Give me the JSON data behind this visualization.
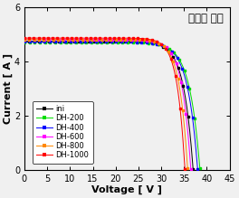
{
  "title": "시제품 모듈",
  "xlabel": "Voltage [ V ]",
  "ylabel": "Current [ A ]",
  "xlim": [
    0,
    45
  ],
  "ylim": [
    0,
    6
  ],
  "xticks": [
    0,
    5,
    10,
    15,
    20,
    25,
    30,
    35,
    40,
    45
  ],
  "yticks": [
    0,
    2,
    4,
    6
  ],
  "bg_color": "#f0f0f0",
  "plot_bg_color": "#f0f0f0",
  "title_fontsize": 8.5,
  "axis_label_fontsize": 8,
  "tick_fontsize": 7,
  "legend_fontsize": 6.0,
  "series": [
    {
      "label": "ini",
      "color": "#000000",
      "isc": 4.75,
      "voc": 37.0,
      "kn": 18.0
    },
    {
      "label": "DH-200",
      "color": "#00dd00",
      "isc": 4.72,
      "voc": 38.5,
      "kn": 17.0
    },
    {
      "label": "DH-400",
      "color": "#0000ff",
      "isc": 4.73,
      "voc": 38.0,
      "kn": 17.5
    },
    {
      "label": "DH-600",
      "color": "#ff00ff",
      "isc": 4.82,
      "voc": 36.5,
      "kn": 19.0
    },
    {
      "label": "DH-800",
      "color": "#ff8800",
      "isc": 4.82,
      "voc": 35.8,
      "kn": 20.0
    },
    {
      "label": "DH-1000",
      "color": "#ff0000",
      "isc": 4.87,
      "voc": 35.2,
      "kn": 21.0
    }
  ]
}
